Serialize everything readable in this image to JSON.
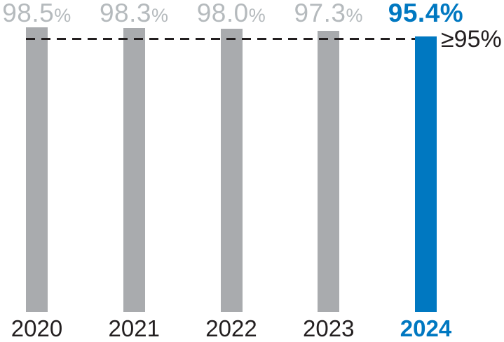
{
  "chart_data": {
    "type": "bar",
    "title": "",
    "xlabel": "",
    "ylabel": "",
    "categories": [
      "2020",
      "2021",
      "2022",
      "2023",
      "2024"
    ],
    "values": [
      98.5,
      98.3,
      98.0,
      97.3,
      95.4
    ],
    "value_labels": [
      "98.5%",
      "98.3%",
      "98.0%",
      "97.3%",
      "95.4%"
    ],
    "highlight_index": 4,
    "target_line": {
      "value": 95,
      "label": "≥95%"
    },
    "ylim": [
      0,
      100
    ],
    "grid": false,
    "legend": "none",
    "colors": {
      "bar_default": "#a9abae",
      "bar_highlight": "#0078c1",
      "label_default": "#b5babd",
      "label_highlight": "#0078c1",
      "axis_text": "#231f20",
      "target_line_color": "#231f20"
    }
  }
}
